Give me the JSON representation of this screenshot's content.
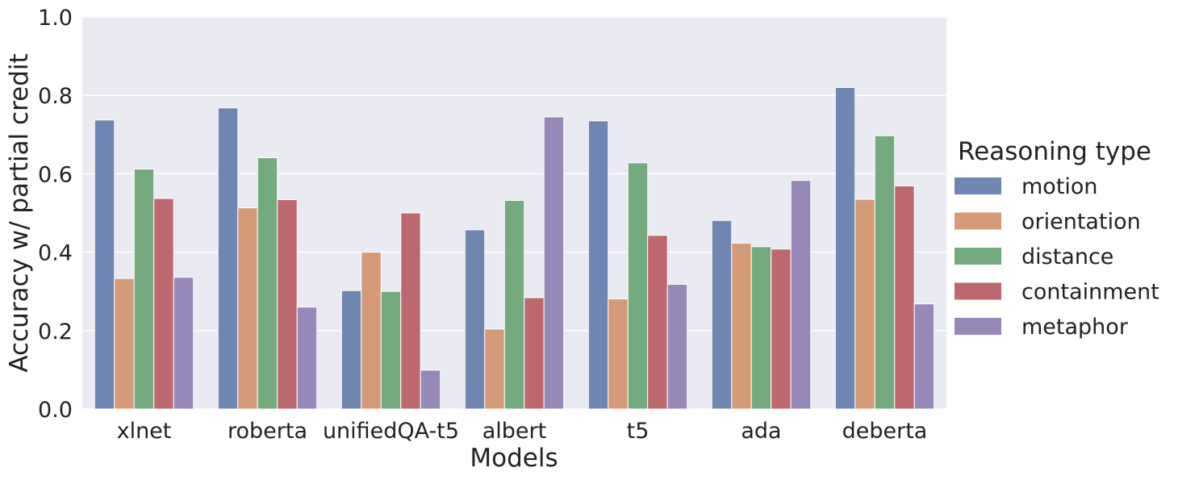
{
  "chart_data": {
    "type": "bar",
    "xlabel": "Models",
    "ylabel": "Accuracy w/ partial credit",
    "ylim": [
      0,
      1.0
    ],
    "yticks": [
      "0.0",
      "0.2",
      "0.4",
      "0.6",
      "0.8",
      "1.0"
    ],
    "grid": true,
    "legend": {
      "title": "Reasoning type",
      "placement": "right"
    },
    "categories": [
      "xlnet",
      "roberta",
      "unifiedQA-t5",
      "albert",
      "t5",
      "ada",
      "deberta"
    ],
    "series": [
      {
        "name": "motion",
        "color": "#6f86b3",
        "values": [
          0.737,
          0.768,
          0.302,
          0.457,
          0.735,
          0.481,
          0.82
        ]
      },
      {
        "name": "orientation",
        "color": "#d59a77",
        "values": [
          0.333,
          0.513,
          0.4,
          0.204,
          0.281,
          0.423,
          0.535
        ]
      },
      {
        "name": "distance",
        "color": "#74ab7e",
        "values": [
          0.612,
          0.641,
          0.3,
          0.532,
          0.628,
          0.414,
          0.697
        ]
      },
      {
        "name": "containment",
        "color": "#bd686e",
        "values": [
          0.537,
          0.534,
          0.5,
          0.284,
          0.443,
          0.408,
          0.569
        ]
      },
      {
        "name": "metaphor",
        "color": "#9688b8",
        "values": [
          0.336,
          0.26,
          0.099,
          0.745,
          0.318,
          0.583,
          0.268
        ]
      }
    ]
  }
}
